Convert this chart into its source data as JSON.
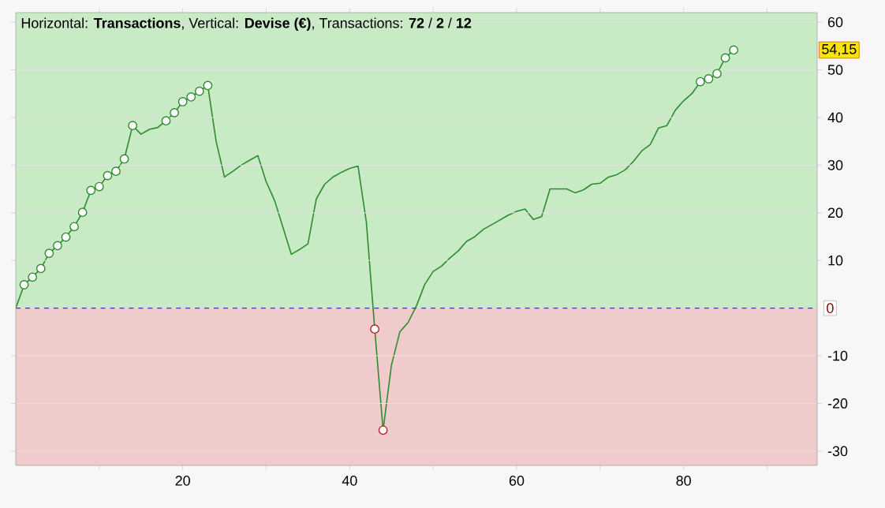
{
  "chart_data": {
    "type": "line",
    "title": "Horizontal: **Transactions**, Vertical: **Devise (€)**, Transactions: **72** / **2** / **12**",
    "xlim": [
      0,
      96
    ],
    "ylim": [
      -33,
      62
    ],
    "xticks": [
      {
        "value": 10,
        "label": null
      },
      20,
      {
        "value": 30,
        "label": null
      },
      40,
      {
        "value": 50,
        "label": null
      },
      60,
      {
        "value": 70,
        "label": null
      },
      80,
      {
        "value": 90,
        "label": null
      }
    ],
    "yticks": [
      -30,
      -20,
      -10,
      10,
      20,
      30,
      40,
      50,
      60
    ],
    "grid": "y",
    "bands": [
      {
        "axis": "y",
        "from": 0,
        "to": 62,
        "color": "#c8ebc6"
      },
      {
        "axis": "y",
        "from": -33,
        "to": 0,
        "color": "#efcbcb"
      }
    ],
    "ref_lines": [
      {
        "axis": "y",
        "value": 0,
        "label": "0",
        "color": "#3a3aa0",
        "line_style": "dashed"
      }
    ],
    "annotations": [
      "54,15"
    ],
    "series": [
      {
        "color": "#2e8b2e",
        "marker": "none",
        "x": [
          0,
          1,
          2,
          3,
          4,
          5,
          6,
          7,
          8,
          9,
          10,
          11,
          12,
          13,
          14,
          15,
          16,
          17,
          18,
          19,
          20,
          21,
          22,
          23,
          24,
          25,
          26,
          27,
          28,
          29,
          30,
          31,
          32,
          33,
          34,
          35,
          36,
          37,
          38,
          39,
          40,
          41,
          42,
          43,
          44,
          45,
          46,
          47,
          48,
          49,
          50,
          51,
          52,
          53,
          54,
          55,
          56,
          57,
          58,
          59,
          60,
          61,
          62,
          63,
          64,
          65,
          66,
          67,
          68,
          69,
          70,
          71,
          72,
          73,
          74,
          75,
          76,
          77,
          78,
          79,
          80,
          81,
          82,
          83,
          84,
          85,
          86
        ],
        "values": [
          0,
          4.9,
          6.5,
          8.3,
          11.5,
          13.1,
          14.9,
          17.1,
          20.1,
          24.7,
          25.5,
          27.8,
          28.7,
          31.3,
          38.3,
          36.5,
          37.5,
          37.9,
          39.3,
          41,
          43.3,
          44.3,
          45.5,
          46.7,
          35,
          27.5,
          28.7,
          30,
          31,
          32,
          26.5,
          22.6,
          17,
          11.3,
          12.3,
          13.5,
          22.9,
          26,
          27.5,
          28.5,
          29.3,
          29.8,
          18,
          -4.4,
          -25.6,
          -12,
          -5,
          -3,
          0.5,
          5,
          7.7,
          8.8,
          10.5,
          12,
          14,
          15,
          16.5,
          17.5,
          18.5,
          19.5,
          20.3,
          20.8,
          18.6,
          19.2,
          25,
          25,
          25,
          24.2,
          24.8,
          26,
          26.2,
          27.5,
          28,
          29,
          30.8,
          33,
          34.3,
          37.8,
          38.3,
          41.5,
          43.5,
          45,
          47.5,
          48.1,
          49.2,
          52.5,
          54.15
        ]
      },
      {
        "type": "scatter",
        "color": "#2e8b2e",
        "marker": "circle",
        "x": [
          1,
          2,
          3,
          4,
          5,
          6,
          7,
          8,
          9,
          10,
          11,
          12,
          13,
          14,
          18,
          19,
          20,
          21,
          22,
          23,
          82,
          83,
          84,
          85,
          86
        ],
        "values": [
          4.9,
          6.5,
          8.3,
          11.5,
          13.1,
          14.9,
          17.1,
          20.1,
          24.7,
          25.5,
          27.8,
          28.7,
          31.3,
          38.3,
          39.3,
          41,
          43.3,
          44.3,
          45.5,
          46.7,
          47.5,
          48.1,
          49.2,
          52.5,
          54.15
        ]
      },
      {
        "type": "scatter",
        "color": "#b22222",
        "marker": "circle",
        "x": [
          43,
          44
        ],
        "values": [
          -4.4,
          -25.6
        ]
      }
    ]
  }
}
